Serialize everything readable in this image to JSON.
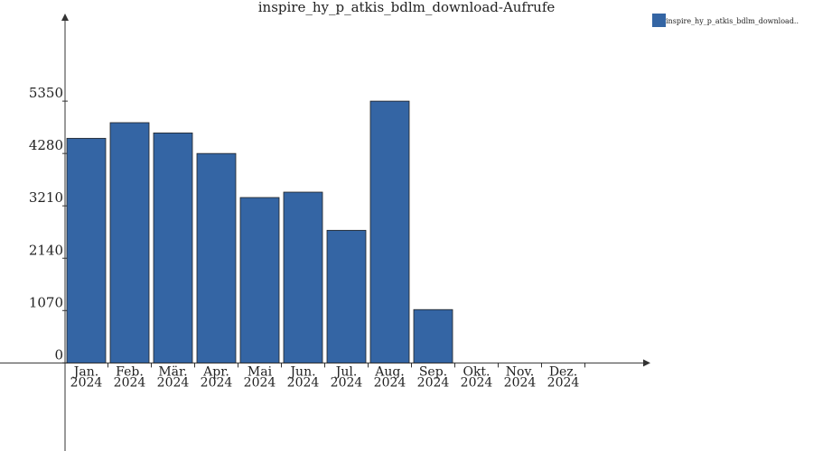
{
  "chart_data": {
    "type": "bar",
    "title": "inspire_hy_p_atkis_bdlm_download-Aufrufe",
    "categories": [
      "Jan.\n2024",
      "Feb.\n2024",
      "Mär.\n2024",
      "Apr.\n2024",
      "Mai\n2024",
      "Jun.\n2024",
      "Jul.\n2024",
      "Aug.\n2024",
      "Sep.\n2024",
      "Okt.\n2024",
      "Nov.\n2024",
      "Dez.\n2024"
    ],
    "series": [
      {
        "name": "inspire_hy_p_atkis_bdlm_download..",
        "color": "#3465a4",
        "values": [
          4590,
          4910,
          4700,
          4280,
          3380,
          3490,
          2710,
          5350,
          1090,
          0,
          0,
          0
        ]
      }
    ],
    "ylim": [
      -1800,
      7140
    ],
    "yticks": [
      0,
      1070,
      2140,
      3210,
      4280,
      5350
    ]
  }
}
